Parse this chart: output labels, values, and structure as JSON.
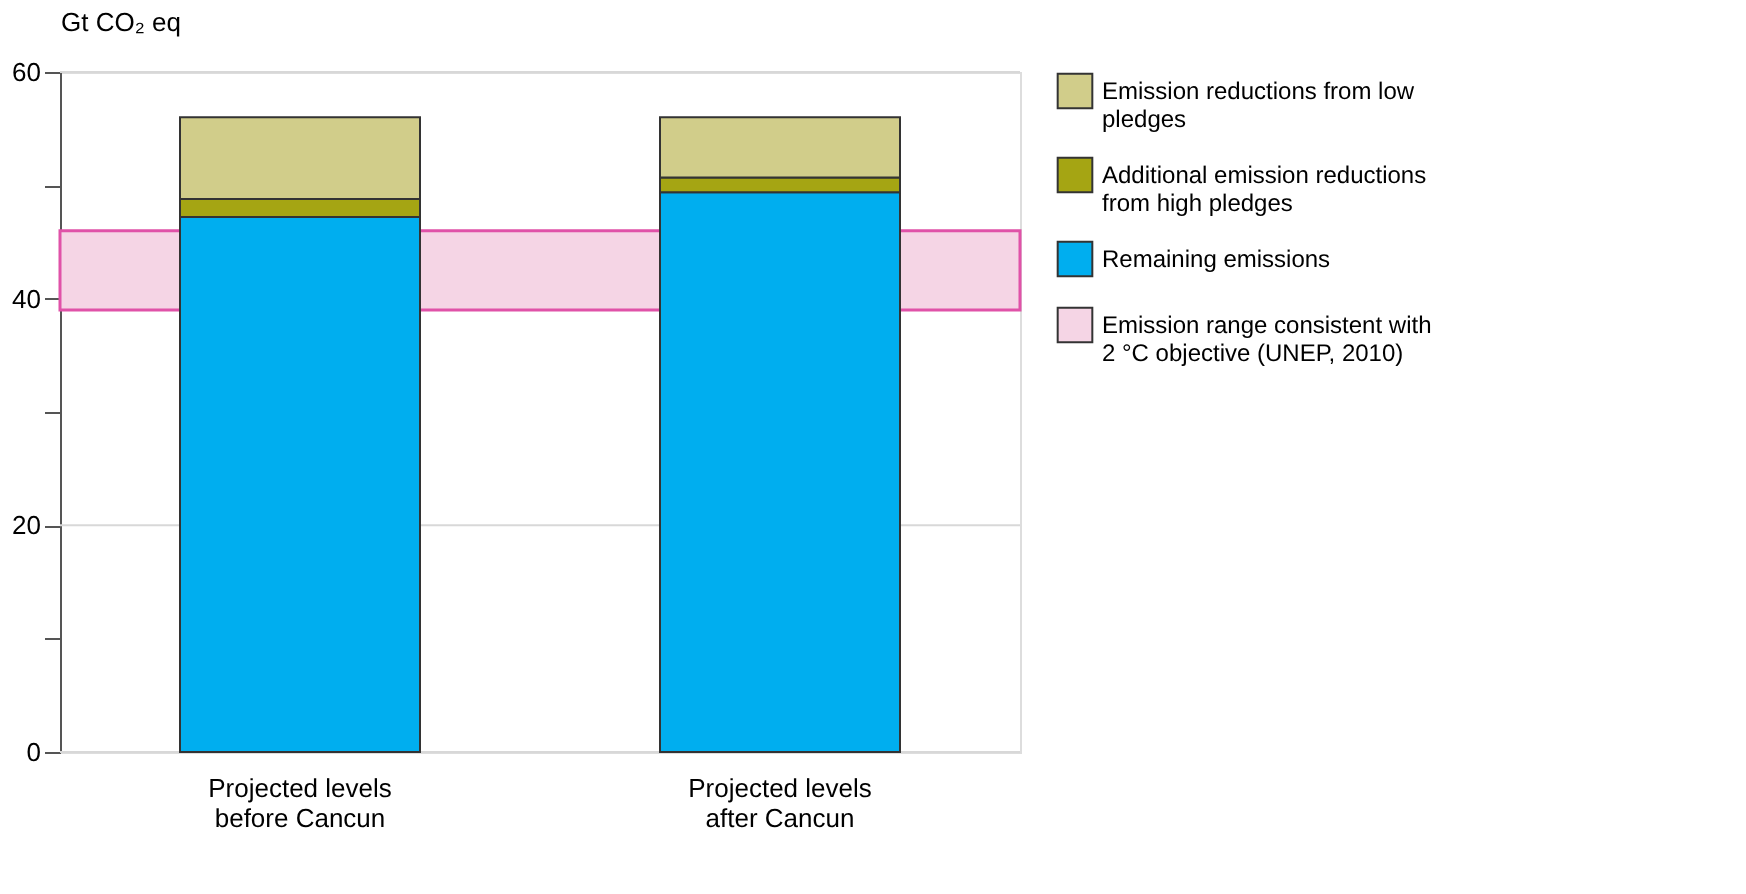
{
  "chart_data": {
    "type": "bar",
    "stacked": true,
    "ylabel": "Gt CO₂ eq",
    "categories": [
      "Projected levels before Cancun",
      "Projected levels after Cancun"
    ],
    "series": [
      {
        "name": "Remaining emissions",
        "color": "#00aeef",
        "values": [
          47.2,
          49.4
        ]
      },
      {
        "name": "Additional emission reductions from high pledges",
        "color": "#a5a513",
        "values": [
          1.6,
          1.3
        ]
      },
      {
        "name": "Emission reductions from low pledges",
        "color": "#d1cd8a",
        "values": [
          7.2,
          5.3
        ]
      }
    ],
    "bands": [
      {
        "axis": "y",
        "from": 39.0,
        "to": 46.0,
        "label": "Emission range consistent with 2 °C objective (UNEP, 2010)",
        "color": "#f5d5e5"
      }
    ],
    "ylim": [
      0,
      60
    ],
    "yticks": [
      0,
      {
        "value": 10,
        "label": null
      },
      20,
      {
        "value": 30,
        "label": null
      },
      40,
      {
        "value": 50,
        "label": null
      },
      60
    ],
    "grid": "y",
    "legend": "right"
  }
}
